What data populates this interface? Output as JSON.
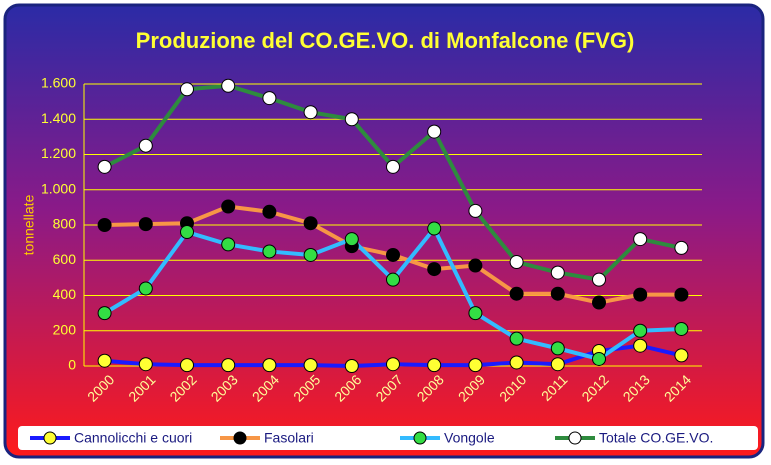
{
  "chart_data": {
    "type": "line",
    "title": "Produzione del CO.GE.VO. di Monfalcone (FVG)",
    "y_label": "tonnellate",
    "categories": [
      "2000",
      "2001",
      "2002",
      "2003",
      "2004",
      "2005",
      "2006",
      "2007",
      "2008",
      "2009",
      "2010",
      "2011",
      "2012",
      "2013",
      "2014"
    ],
    "series": [
      {
        "name": "Cannolicchi e cuori",
        "color": "#1a1aff",
        "marker_color": "#ffff33",
        "values": [
          30,
          10,
          5,
          5,
          5,
          5,
          0,
          10,
          5,
          5,
          20,
          10,
          85,
          115,
          60
        ]
      },
      {
        "name": "Fasolari",
        "color": "#f79646",
        "marker_color": "#000000",
        "values": [
          800,
          805,
          810,
          905,
          875,
          810,
          680,
          630,
          550,
          570,
          410,
          410,
          360,
          405,
          405
        ]
      },
      {
        "name": "Vongole",
        "color": "#33bbff",
        "marker_color": "#33dd44",
        "values": [
          300,
          440,
          760,
          690,
          650,
          630,
          720,
          490,
          780,
          300,
          155,
          100,
          40,
          200,
          210
        ]
      },
      {
        "name": "Totale CO.GE.VO.",
        "color": "#2e8b3e",
        "marker_color": "#ffffff",
        "values": [
          1130,
          1250,
          1570,
          1590,
          1520,
          1440,
          1400,
          1130,
          1330,
          880,
          590,
          530,
          490,
          720,
          670
        ]
      }
    ],
    "ylim": [
      0,
      1600
    ],
    "yticks": [
      0,
      200,
      400,
      600,
      800,
      {
        "value": 1000,
        "label": "1.000"
      },
      {
        "value": 1200,
        "label": "1.200"
      },
      {
        "value": 1400,
        "label": "1.400"
      },
      {
        "value": 1600,
        "label": "1.600"
      }
    ],
    "grid": true,
    "legend": "bottom"
  }
}
